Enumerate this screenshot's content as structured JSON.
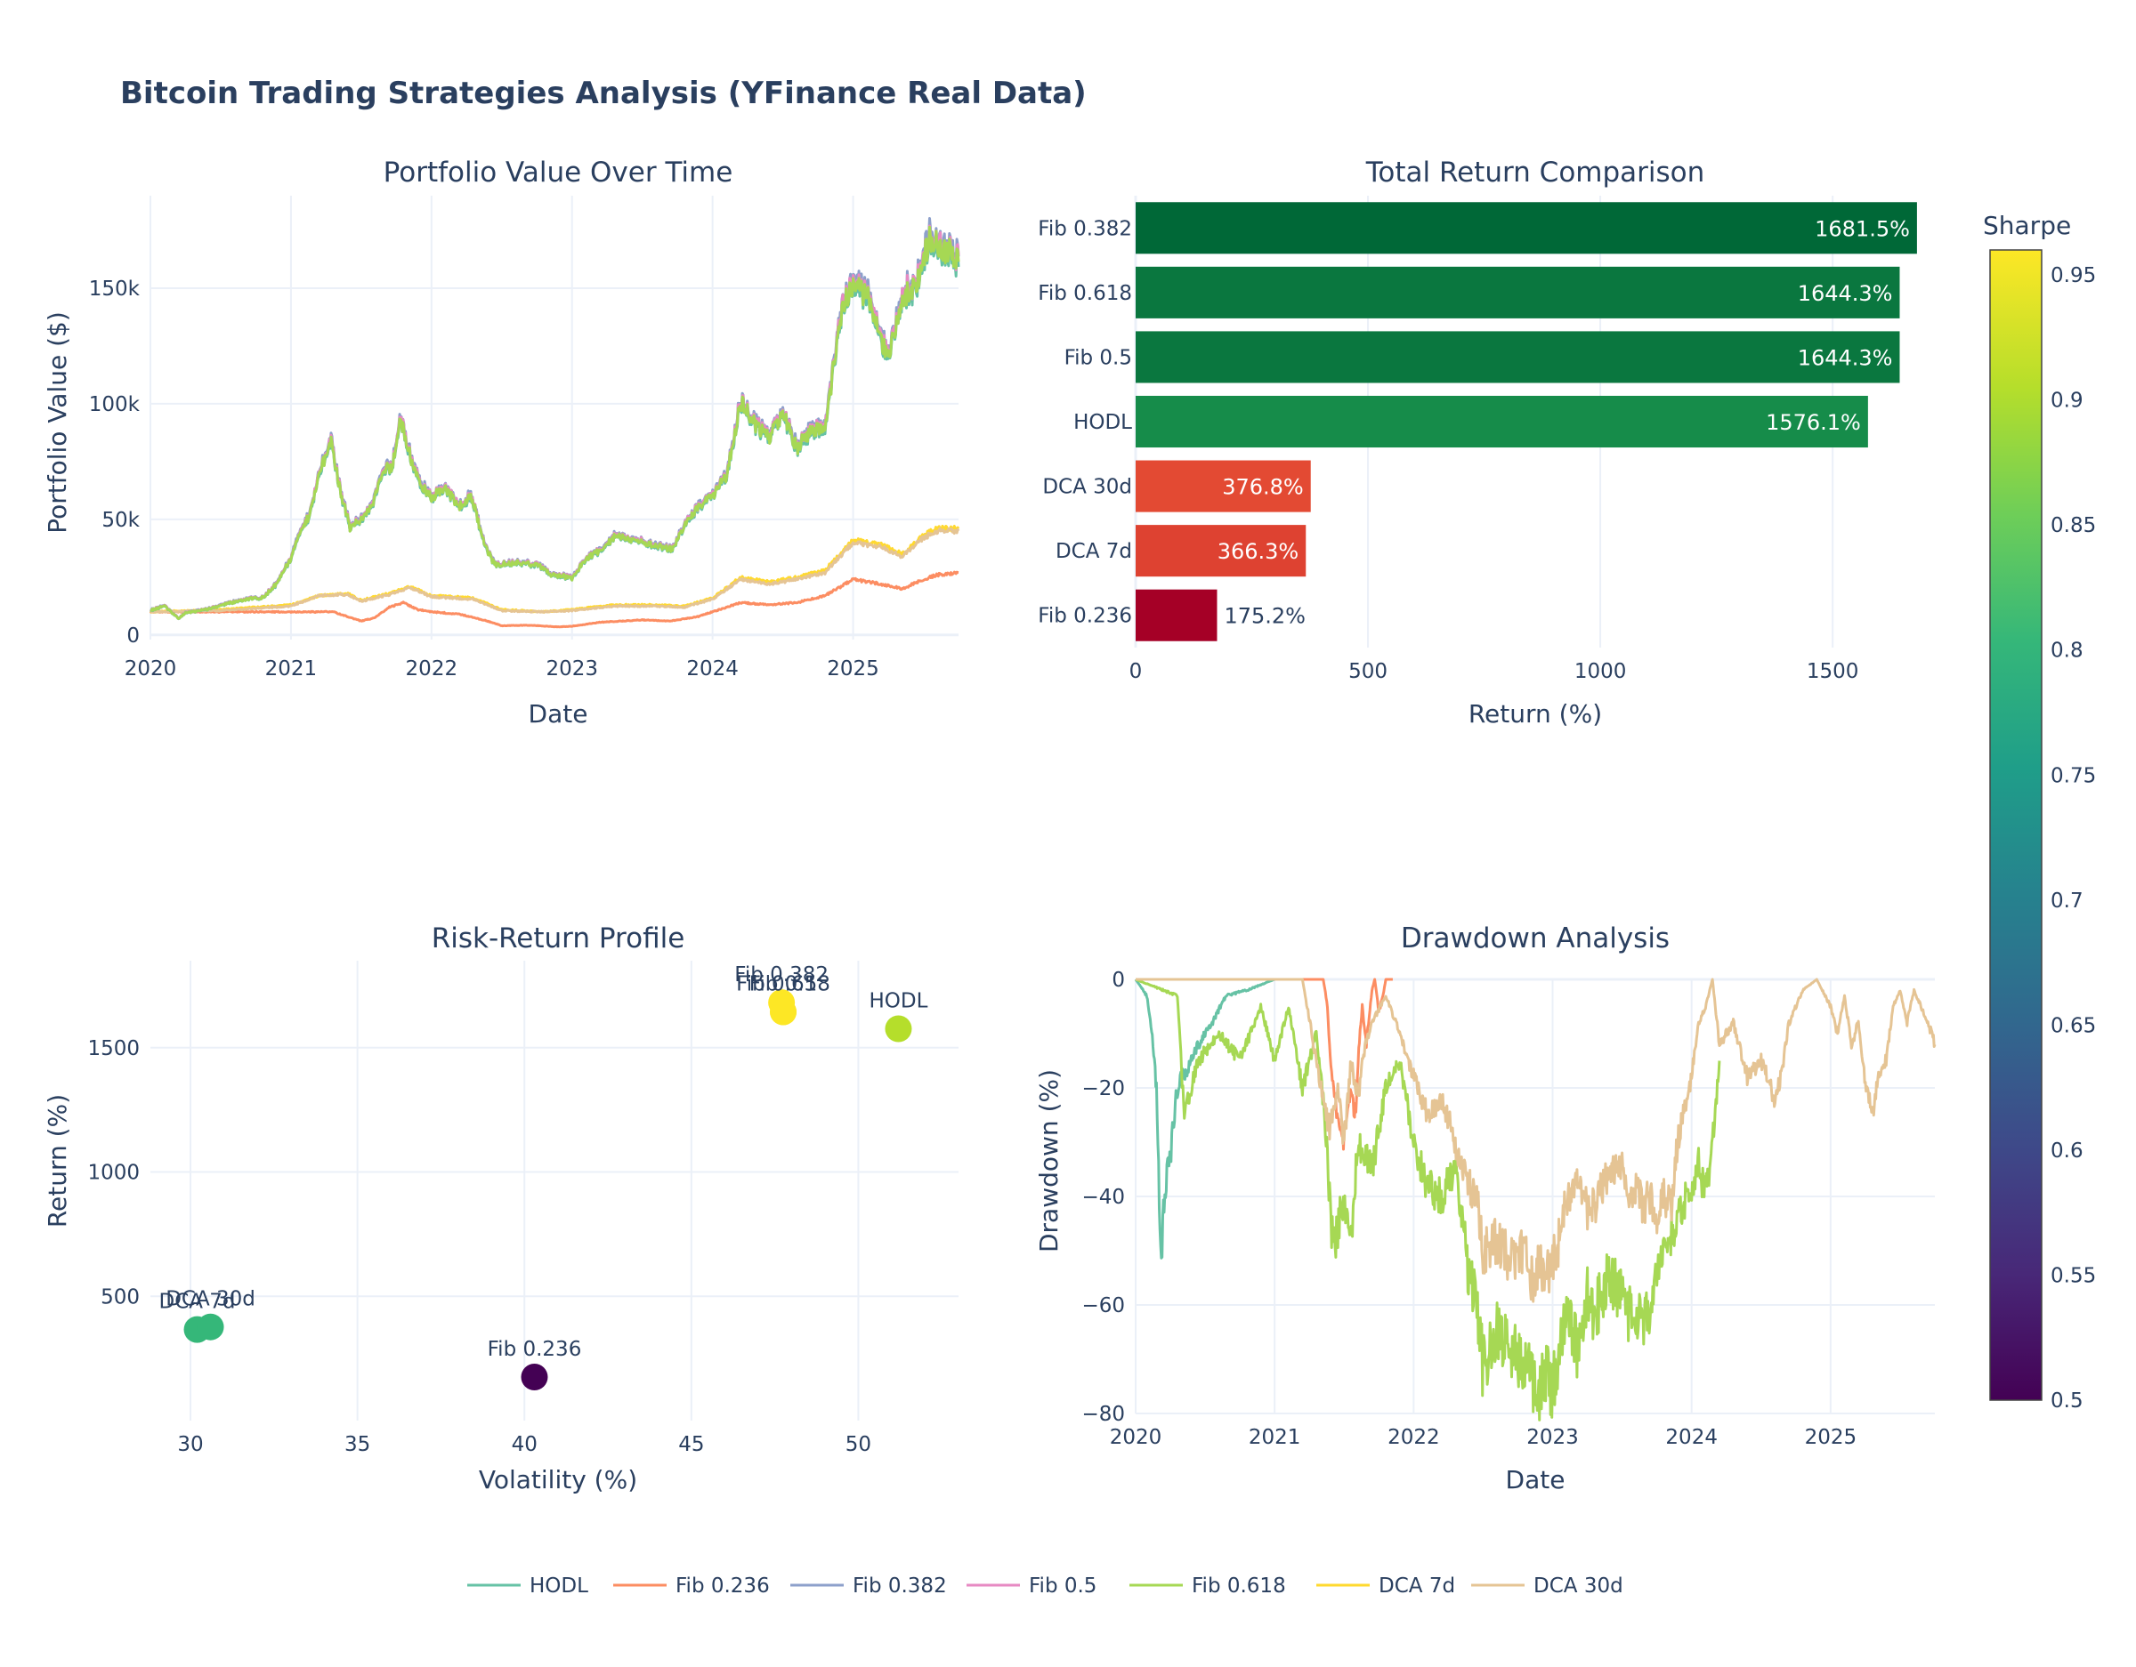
{
  "title": "Bitcoin Trading Strategies Analysis (YFinance Real Data)",
  "colors": {
    "HODL": "#66c2a5",
    "Fib 0.236": "#fc8d62",
    "Fib 0.382": "#8da0cb",
    "Fib 0.5": "#e78ac3",
    "Fib 0.618": "#a6d854",
    "DCA 7d": "#ffd92f",
    "DCA 30d": "#e5c494"
  },
  "legend": [
    "HODL",
    "Fib 0.236",
    "Fib 0.382",
    "Fib 0.5",
    "Fib 0.618",
    "DCA 7d",
    "DCA 30d"
  ],
  "colorbar": {
    "title": "Sharpe",
    "min": 0.5,
    "max": 0.96,
    "ticks": [
      "0.5",
      "0.55",
      "0.6",
      "0.65",
      "0.7",
      "0.75",
      "0.8",
      "0.85",
      "0.9",
      "0.95"
    ],
    "colorscale": "Viridis"
  },
  "chart_data": [
    {
      "id": "portfolio",
      "type": "line",
      "title": "Portfolio Value Over Time",
      "xlabel": "Date",
      "ylabel": "Portfolio Value ($)",
      "xlim": [
        2020.0,
        2025.75
      ],
      "ylim": [
        -2000,
        190000
      ],
      "xticks": [
        "2020",
        "2021",
        "2022",
        "2023",
        "2024",
        "2025"
      ],
      "yticks": [
        {
          "v": 0,
          "label": "0"
        },
        {
          "v": 50000,
          "label": "50k"
        },
        {
          "v": 100000,
          "label": "100k"
        },
        {
          "v": 150000,
          "label": "150k"
        }
      ],
      "btc_x": [
        2020.0,
        2020.1,
        2020.2,
        2020.25,
        2020.4,
        2020.55,
        2020.7,
        2020.8,
        2020.9,
        2021.0,
        2021.05,
        2021.12,
        2021.2,
        2021.28,
        2021.35,
        2021.42,
        2021.5,
        2021.58,
        2021.65,
        2021.72,
        2021.78,
        2021.85,
        2021.92,
        2022.0,
        2022.1,
        2022.2,
        2022.28,
        2022.38,
        2022.45,
        2022.6,
        2022.75,
        2022.85,
        2023.0,
        2023.1,
        2023.2,
        2023.3,
        2023.45,
        2023.6,
        2023.72,
        2023.8,
        2023.9,
        2024.0,
        2024.1,
        2024.2,
        2024.3,
        2024.4,
        2024.5,
        2024.6,
        2024.7,
        2024.8,
        2024.85,
        2024.92,
        2025.0,
        2025.1,
        2025.18,
        2025.25,
        2025.35,
        2025.45,
        2025.55,
        2025.65,
        2025.75
      ],
      "series": [
        {
          "name": "HODL",
          "ref": "btc",
          "scale": 1.0,
          "offset": 0
        },
        {
          "name": "Fib 0.382",
          "ref": "btc",
          "scale": 1.03,
          "offset": 0
        },
        {
          "name": "Fib 0.5",
          "ref": "btc",
          "scale": 1.02,
          "offset": 0
        },
        {
          "name": "Fib 0.618",
          "ref": "btc",
          "scale": 1.01,
          "offset": 0
        },
        {
          "name": "Fib 0.236",
          "x": [
            2020.0,
            2021.0,
            2021.3,
            2021.4,
            2021.5,
            2021.6,
            2021.7,
            2021.8,
            2021.9,
            2022.0,
            2022.2,
            2022.4,
            2022.5,
            2022.7,
            2022.9,
            2023.0,
            2023.2,
            2023.5,
            2023.7,
            2023.9,
            2024.0,
            2024.2,
            2024.4,
            2024.6,
            2024.8,
            2025.0,
            2025.2,
            2025.35,
            2025.5,
            2025.6,
            2025.75
          ],
          "y": [
            10000,
            10000,
            10000,
            8000,
            6000,
            7500,
            12000,
            14000,
            11000,
            10000,
            9000,
            6000,
            4000,
            4200,
            3500,
            3800,
            5500,
            6500,
            6000,
            8000,
            10000,
            14000,
            13000,
            14000,
            17000,
            24000,
            22000,
            20000,
            24000,
            26000,
            27000
          ]
        },
        {
          "name": "DCA 7d",
          "x": [
            2020.0,
            2020.5,
            2021.0,
            2021.2,
            2021.4,
            2021.5,
            2021.7,
            2021.85,
            2022.0,
            2022.3,
            2022.5,
            2022.8,
            2023.0,
            2023.3,
            2023.6,
            2023.8,
            2024.0,
            2024.2,
            2024.4,
            2024.6,
            2024.8,
            2025.0,
            2025.2,
            2025.35,
            2025.5,
            2025.6,
            2025.75
          ],
          "y": [
            10000,
            11000,
            13000,
            17000,
            18000,
            15000,
            18000,
            21000,
            17000,
            16000,
            11000,
            10000,
            11000,
            13000,
            13000,
            12500,
            16000,
            25000,
            23000,
            25000,
            28000,
            41000,
            39000,
            35000,
            43000,
            46000,
            46000
          ]
        },
        {
          "name": "DCA 30d",
          "x": [
            2020.0,
            2020.5,
            2021.0,
            2021.2,
            2021.4,
            2021.5,
            2021.7,
            2021.85,
            2022.0,
            2022.3,
            2022.5,
            2022.8,
            2023.0,
            2023.3,
            2023.6,
            2023.8,
            2024.0,
            2024.2,
            2024.4,
            2024.6,
            2024.8,
            2025.0,
            2025.2,
            2025.35,
            2025.5,
            2025.6,
            2025.75
          ],
          "y": [
            10000,
            10500,
            12500,
            17000,
            17500,
            14500,
            17500,
            20500,
            16500,
            15500,
            10500,
            10000,
            10500,
            12500,
            12500,
            12000,
            15500,
            24000,
            22000,
            24000,
            27000,
            40000,
            38000,
            34000,
            42000,
            45000,
            45000
          ]
        }
      ],
      "btc_y": [
        10500,
        12500,
        7000,
        9500,
        11000,
        13500,
        15500,
        16000,
        22000,
        33000,
        42000,
        50000,
        68000,
        84000,
        62000,
        46000,
        50000,
        55000,
        71000,
        72000,
        93000,
        77000,
        64000,
        59000,
        62000,
        55000,
        60000,
        38000,
        30000,
        31000,
        30000,
        26000,
        24500,
        33000,
        36000,
        42000,
        41000,
        38000,
        37000,
        47000,
        55000,
        60000,
        68000,
        100000,
        90000,
        85000,
        95000,
        80000,
        87000,
        90000,
        110000,
        138000,
        150000,
        145000,
        130000,
        118000,
        145000,
        150000,
        170000,
        165000,
        160000
      ]
    },
    {
      "id": "returns",
      "type": "bar",
      "orientation": "horizontal",
      "title": "Total Return Comparison",
      "xlabel": "Return (%)",
      "ylabel": "",
      "xlim": [
        0,
        1720
      ],
      "xticks": [
        0,
        500,
        1000,
        1500
      ],
      "categories": [
        "Fib 0.382",
        "Fib 0.618",
        "Fib 0.5",
        "HODL",
        "DCA 30d",
        "DCA 7d",
        "Fib 0.236"
      ],
      "values": [
        1681.5,
        1644.3,
        1644.3,
        1576.1,
        376.8,
        366.3,
        175.2
      ],
      "labels": [
        "1681.5%",
        "1644.3%",
        "1644.3%",
        "1576.1%",
        "376.8%",
        "366.3%",
        "175.2%"
      ],
      "bar_colors": [
        "#006837",
        "#0a773f",
        "#0a773f",
        "#168c4a",
        "#e34a33",
        "#de4231",
        "#a50026"
      ]
    },
    {
      "id": "risk",
      "type": "scatter",
      "title": "Risk-Return Profile",
      "xlabel": "Volatility (%)",
      "ylabel": "Return (%)",
      "xlim": [
        28.8,
        53
      ],
      "ylim": [
        0,
        1850
      ],
      "xticks": [
        30,
        35,
        40,
        45,
        50
      ],
      "yticks": [
        {
          "v": 500,
          "label": "500"
        },
        {
          "v": 1000,
          "label": "1000"
        },
        {
          "v": 1500,
          "label": "1500"
        }
      ],
      "points": [
        {
          "name": "HODL",
          "x": 51.2,
          "y": 1576.1,
          "sharpe": 0.91
        },
        {
          "name": "Fib 0.236",
          "x": 40.3,
          "y": 175.2,
          "sharpe": 0.5
        },
        {
          "name": "Fib 0.382",
          "x": 47.7,
          "y": 1681.5,
          "sharpe": 0.96
        },
        {
          "name": "Fib 0.5",
          "x": 47.75,
          "y": 1644.3,
          "sharpe": 0.955
        },
        {
          "name": "Fib 0.618",
          "x": 47.75,
          "y": 1644.3,
          "sharpe": 0.955
        },
        {
          "name": "DCA 7d",
          "x": 30.2,
          "y": 366.3,
          "sharpe": 0.79
        },
        {
          "name": "DCA 30d",
          "x": 30.6,
          "y": 376.8,
          "sharpe": 0.79
        }
      ]
    },
    {
      "id": "drawdown",
      "type": "line",
      "title": "Drawdown Analysis",
      "xlabel": "Date",
      "ylabel": "Drawdown (%)",
      "xlim": [
        2020.0,
        2025.75
      ],
      "ylim": [
        -80,
        0
      ],
      "xticks": [
        "2020",
        "2021",
        "2022",
        "2023",
        "2024",
        "2025"
      ],
      "yticks": [
        {
          "v": 0,
          "label": "0"
        },
        {
          "v": -20,
          "label": "−20"
        },
        {
          "v": -40,
          "label": "−40"
        },
        {
          "v": -60,
          "label": "−60"
        },
        {
          "v": -80,
          "label": "−80"
        }
      ],
      "series": [
        {
          "name": "HODL",
          "x": [
            2020.0,
            2020.08,
            2020.12,
            2020.15,
            2020.18,
            2020.22,
            2020.26,
            2020.3,
            2020.36,
            2020.45,
            2020.55,
            2020.65,
            2020.8,
            2021.0
          ],
          "y": [
            0,
            -3,
            -10,
            -20,
            -50,
            -38,
            -30,
            -20,
            -17,
            -12,
            -8,
            -3,
            -2,
            0
          ]
        },
        {
          "name": "Fib 0.236",
          "x": [
            2020.0,
            2021.35,
            2021.38,
            2021.4,
            2021.45,
            2021.5,
            2021.55,
            2021.58,
            2021.6,
            2021.63,
            2021.66,
            2021.7,
            2021.72,
            2021.75,
            2021.78,
            2021.8,
            2021.85
          ],
          "y": [
            0,
            0,
            -5,
            -15,
            -25,
            -30,
            -20,
            -25,
            -15,
            -5,
            -12,
            -2,
            0,
            -6,
            -3,
            0,
            0
          ]
        },
        {
          "name": "Fib 0.618",
          "x": [
            2020.0,
            2020.3,
            2020.35,
            2020.45,
            2020.6,
            2020.75,
            2020.9,
            2021.0,
            2021.1,
            2021.2,
            2021.3,
            2021.36,
            2021.42,
            2021.5,
            2021.55,
            2021.6,
            2021.7,
            2021.8,
            2021.9,
            2022.0,
            2022.1,
            2022.2,
            2022.3,
            2022.4,
            2022.45,
            2022.5,
            2022.55,
            2022.6,
            2022.7,
            2022.8,
            2022.85,
            2022.9,
            2022.95,
            2023.0,
            2023.05,
            2023.1,
            2023.2,
            2023.25,
            2023.3,
            2023.4,
            2023.5,
            2023.55,
            2023.6,
            2023.65,
            2023.7,
            2023.8,
            2023.9,
            2024.0,
            2024.05,
            2024.1,
            2024.15,
            2024.2
          ],
          "y": [
            0,
            -3,
            -25,
            -15,
            -10,
            -15,
            -5,
            -15,
            -5,
            -20,
            -10,
            -25,
            -50,
            -40,
            -48,
            -30,
            -35,
            -20,
            -15,
            -30,
            -38,
            -40,
            -35,
            -55,
            -58,
            -72,
            -68,
            -65,
            -68,
            -70,
            -75,
            -76,
            -72,
            -75,
            -68,
            -60,
            -70,
            -58,
            -62,
            -55,
            -58,
            -62,
            -60,
            -64,
            -60,
            -50,
            -44,
            -38,
            -34,
            -40,
            -30,
            -15
          ]
        },
        {
          "name": "DCA 30d",
          "x": [
            2020.0,
            2021.2,
            2021.3,
            2021.35,
            2021.4,
            2021.45,
            2021.5,
            2021.55,
            2021.6,
            2021.65,
            2021.7,
            2021.8,
            2021.9,
            2022.0,
            2022.1,
            2022.2,
            2022.3,
            2022.4,
            2022.45,
            2022.5,
            2022.6,
            2022.7,
            2022.8,
            2022.85,
            2022.9,
            2022.95,
            2023.0,
            2023.05,
            2023.1,
            2023.2,
            2023.25,
            2023.3,
            2023.4,
            2023.5,
            2023.55,
            2023.6,
            2023.65,
            2023.7,
            2023.75,
            2023.8,
            2023.85,
            2023.9,
            2024.0,
            2024.05,
            2024.1,
            2024.15,
            2024.2,
            2024.3,
            2024.4,
            2024.5,
            2024.6,
            2024.65,
            2024.7,
            2024.8,
            2024.9,
            2025.0,
            2025.05,
            2025.1,
            2025.15,
            2025.2,
            2025.25,
            2025.3,
            2025.35,
            2025.4,
            2025.45,
            2025.5,
            2025.55,
            2025.6,
            2025.65,
            2025.7,
            2025.75
          ],
          "y": [
            0,
            0,
            -15,
            -22,
            -28,
            -20,
            -30,
            -15,
            -22,
            -12,
            -8,
            -3,
            -10,
            -18,
            -25,
            -22,
            -30,
            -38,
            -40,
            -50,
            -48,
            -52,
            -50,
            -55,
            -53,
            -56,
            -52,
            -48,
            -40,
            -38,
            -43,
            -42,
            -36,
            -34,
            -40,
            -38,
            -42,
            -40,
            -44,
            -40,
            -42,
            -30,
            -18,
            -8,
            -5,
            0,
            -12,
            -8,
            -18,
            -15,
            -22,
            -17,
            -8,
            -2,
            0,
            -5,
            -10,
            -3,
            -12,
            -8,
            -20,
            -25,
            -18,
            -15,
            -5,
            -2,
            -8,
            -2,
            -5,
            -8,
            -12
          ]
        }
      ]
    }
  ]
}
